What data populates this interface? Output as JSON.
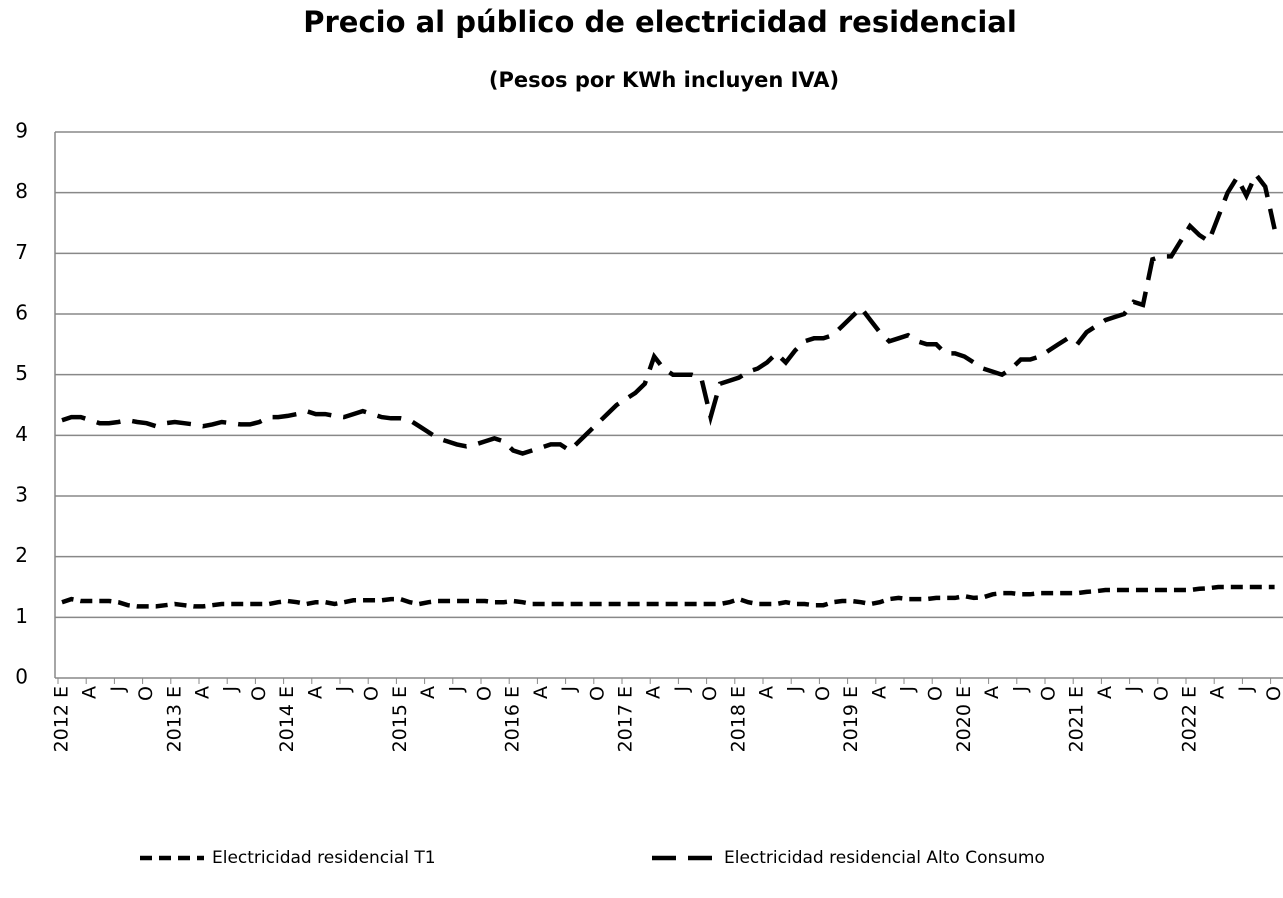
{
  "chart_data": {
    "type": "line",
    "title": "Precio al público de electricidad  residencial",
    "subtitle": "(Pesos por  KWh  incluyen IVA)",
    "categories": [
      "2012 E",
      null,
      null,
      "A",
      null,
      null,
      "J",
      null,
      null,
      "O",
      null,
      null,
      "2013 E",
      null,
      null,
      "A",
      null,
      null,
      "J",
      null,
      null,
      "O",
      null,
      null,
      "2014 E",
      null,
      null,
      "A",
      null,
      null,
      "J",
      null,
      null,
      "O",
      null,
      null,
      "2015 E",
      null,
      null,
      "A",
      null,
      null,
      "J",
      null,
      null,
      "O",
      null,
      null,
      "2016 E",
      null,
      null,
      "A",
      null,
      null,
      "J",
      null,
      null,
      "O",
      null,
      null,
      "2017 E",
      null,
      null,
      "A",
      null,
      null,
      "J",
      null,
      null,
      "O",
      null,
      null,
      "2018 E",
      null,
      null,
      "A",
      null,
      null,
      "J",
      null,
      null,
      "O",
      null,
      null,
      "2019 E",
      null,
      null,
      "A",
      null,
      null,
      "J",
      null,
      null,
      "O",
      null,
      null,
      "2020 E",
      null,
      null,
      "A",
      null,
      null,
      "J",
      null,
      null,
      "O",
      null,
      null,
      "2021 E",
      null,
      null,
      "A",
      null,
      null,
      "J",
      null,
      null,
      "O",
      null,
      null,
      "2022 E",
      null,
      null,
      "A",
      null,
      null,
      "J",
      null,
      null,
      "O"
    ],
    "series": [
      {
        "name": "Electricidad residencial T1",
        "color": "#000000",
        "dash": "short",
        "values": [
          1.25,
          1.3,
          1.27,
          1.27,
          1.27,
          1.27,
          1.25,
          1.2,
          1.18,
          1.18,
          1.18,
          1.2,
          1.22,
          1.2,
          1.18,
          1.18,
          1.2,
          1.22,
          1.22,
          1.22,
          1.22,
          1.22,
          1.22,
          1.25,
          1.27,
          1.25,
          1.22,
          1.25,
          1.25,
          1.22,
          1.25,
          1.28,
          1.28,
          1.28,
          1.28,
          1.3,
          1.3,
          1.25,
          1.22,
          1.25,
          1.27,
          1.27,
          1.27,
          1.27,
          1.27,
          1.27,
          1.25,
          1.25,
          1.27,
          1.25,
          1.22,
          1.22,
          1.22,
          1.22,
          1.22,
          1.22,
          1.22,
          1.22,
          1.22,
          1.22,
          1.22,
          1.22,
          1.22,
          1.22,
          1.22,
          1.22,
          1.22,
          1.22,
          1.22,
          1.22,
          1.22,
          1.25,
          1.3,
          1.25,
          1.22,
          1.22,
          1.22,
          1.25,
          1.22,
          1.22,
          1.2,
          1.2,
          1.25,
          1.27,
          1.27,
          1.25,
          1.22,
          1.25,
          1.3,
          1.32,
          1.3,
          1.3,
          1.3,
          1.32,
          1.32,
          1.32,
          1.35,
          1.32,
          1.33,
          1.38,
          1.4,
          1.4,
          1.38,
          1.38,
          1.4,
          1.4,
          1.4,
          1.4,
          1.4,
          1.42,
          1.43,
          1.45,
          1.45,
          1.45,
          1.45,
          1.45,
          1.45,
          1.45,
          1.45,
          1.45,
          1.45,
          1.47,
          1.48,
          1.5,
          1.5,
          1.5,
          1.5,
          1.5,
          1.5,
          1.5
        ]
      },
      {
        "name": "Electricidad residencial Alto Consumo",
        "color": "#000000",
        "dash": "long",
        "values": [
          4.25,
          4.3,
          4.3,
          4.25,
          4.2,
          4.2,
          4.22,
          4.25,
          4.22,
          4.2,
          4.15,
          4.2,
          4.22,
          4.2,
          4.18,
          4.15,
          4.18,
          4.22,
          4.2,
          4.18,
          4.18,
          4.22,
          4.3,
          4.3,
          4.32,
          4.35,
          4.4,
          4.35,
          4.35,
          4.32,
          4.3,
          4.35,
          4.4,
          4.35,
          4.3,
          4.28,
          4.28,
          4.25,
          4.15,
          4.05,
          3.95,
          3.9,
          3.85,
          3.82,
          3.85,
          3.9,
          3.95,
          3.9,
          3.75,
          3.7,
          3.75,
          3.8,
          3.85,
          3.85,
          3.75,
          3.9,
          4.05,
          4.2,
          4.35,
          4.5,
          4.6,
          4.7,
          4.85,
          5.3,
          5.1,
          5.0,
          5.0,
          5.0,
          4.95,
          4.3,
          4.85,
          4.9,
          4.95,
          5.05,
          5.1,
          5.2,
          5.35,
          5.2,
          5.4,
          5.55,
          5.6,
          5.6,
          5.65,
          5.8,
          5.95,
          6.1,
          5.9,
          5.7,
          5.55,
          5.6,
          5.65,
          5.55,
          5.5,
          5.5,
          5.35,
          5.35,
          5.3,
          5.2,
          5.1,
          5.05,
          5.0,
          5.1,
          5.25,
          5.25,
          5.3,
          5.4,
          5.5,
          5.6,
          5.5,
          5.7,
          5.8,
          5.9,
          5.95,
          6.0,
          6.2,
          6.15,
          6.9,
          6.95,
          6.95,
          7.2,
          7.45,
          7.3,
          7.2,
          7.6,
          8.0,
          8.25,
          7.95,
          8.3,
          8.1,
          7.4
        ]
      }
    ],
    "ylim": [
      0,
      9
    ],
    "yticks": [
      0,
      1,
      2,
      3,
      4,
      5,
      6,
      7,
      8,
      9
    ],
    "grid": true,
    "legend": "bottom"
  }
}
